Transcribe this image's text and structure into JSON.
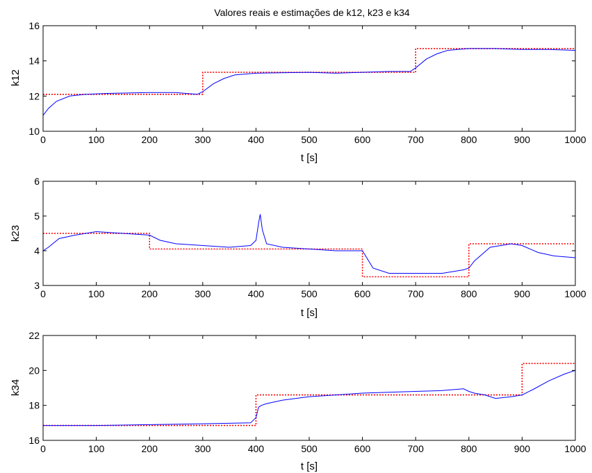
{
  "figure_title": "Valores reais e estimações de k12, k23 e k34",
  "chart_data": [
    {
      "type": "line",
      "xlabel": "t [s]",
      "ylabel": "k12",
      "xlim": [
        0,
        1000
      ],
      "ylim": [
        10,
        16
      ],
      "xticks": [
        0,
        100,
        200,
        300,
        400,
        500,
        600,
        700,
        800,
        900,
        1000
      ],
      "yticks": [
        10,
        12,
        14,
        16
      ],
      "grid": false,
      "series": [
        {
          "color": "#ff0000",
          "style": "dotted",
          "step": true,
          "x": [
            0,
            300,
            300,
            700,
            700,
            1000
          ],
          "y": [
            12.1,
            12.1,
            13.35,
            13.35,
            14.7,
            14.7
          ]
        },
        {
          "color": "#0000ff",
          "style": "solid",
          "x": [
            0,
            10,
            25,
            50,
            80,
            120,
            200,
            250,
            290,
            300,
            320,
            340,
            360,
            400,
            500,
            550,
            600,
            650,
            690,
            700,
            720,
            740,
            760,
            800,
            850,
            900,
            950,
            1000
          ],
          "y": [
            10.9,
            11.3,
            11.7,
            12.0,
            12.1,
            12.15,
            12.2,
            12.2,
            12.1,
            12.25,
            12.7,
            13.0,
            13.2,
            13.3,
            13.35,
            13.3,
            13.35,
            13.4,
            13.4,
            13.6,
            14.1,
            14.4,
            14.6,
            14.7,
            14.7,
            14.65,
            14.65,
            14.6
          ]
        }
      ]
    },
    {
      "type": "line",
      "xlabel": "t [s]",
      "ylabel": "k23",
      "xlim": [
        0,
        1000
      ],
      "ylim": [
        3,
        6
      ],
      "xticks": [
        0,
        100,
        200,
        300,
        400,
        500,
        600,
        700,
        800,
        900,
        1000
      ],
      "yticks": [
        3,
        4,
        5,
        6
      ],
      "grid": false,
      "series": [
        {
          "color": "#ff0000",
          "style": "dotted",
          "step": true,
          "x": [
            0,
            200,
            200,
            600,
            600,
            800,
            800,
            1000
          ],
          "y": [
            4.5,
            4.5,
            4.05,
            4.05,
            3.25,
            3.25,
            4.2,
            4.2
          ]
        },
        {
          "color": "#0000ff",
          "style": "solid",
          "x": [
            0,
            10,
            30,
            60,
            100,
            150,
            200,
            220,
            250,
            300,
            350,
            390,
            400,
            405,
            408,
            412,
            420,
            450,
            500,
            550,
            600,
            620,
            650,
            700,
            750,
            790,
            800,
            810,
            840,
            880,
            900,
            930,
            960,
            1000
          ],
          "y": [
            4.0,
            4.1,
            4.35,
            4.45,
            4.55,
            4.5,
            4.45,
            4.3,
            4.2,
            4.15,
            4.1,
            4.15,
            4.3,
            4.8,
            5.05,
            4.6,
            4.2,
            4.1,
            4.05,
            4.0,
            4.0,
            3.5,
            3.35,
            3.35,
            3.35,
            3.45,
            3.5,
            3.7,
            4.1,
            4.2,
            4.15,
            3.95,
            3.85,
            3.8
          ]
        }
      ]
    },
    {
      "type": "line",
      "xlabel": "t [s]",
      "ylabel": "k34",
      "xlim": [
        0,
        1000
      ],
      "ylim": [
        16,
        22
      ],
      "xticks": [
        0,
        100,
        200,
        300,
        400,
        500,
        600,
        700,
        800,
        900,
        1000
      ],
      "yticks": [
        16,
        18,
        20,
        22
      ],
      "grid": false,
      "series": [
        {
          "color": "#ff0000",
          "style": "dotted",
          "step": true,
          "x": [
            0,
            400,
            400,
            900,
            900,
            1000
          ],
          "y": [
            16.85,
            16.85,
            18.6,
            18.6,
            20.4,
            20.4
          ]
        },
        {
          "color": "#0000ff",
          "style": "solid",
          "x": [
            0,
            100,
            200,
            300,
            390,
            400,
            405,
            410,
            420,
            450,
            500,
            550,
            600,
            650,
            700,
            750,
            790,
            800,
            810,
            830,
            850,
            880,
            900,
            920,
            950,
            980,
            1000
          ],
          "y": [
            16.85,
            16.85,
            16.9,
            16.95,
            17.0,
            17.3,
            17.9,
            18.0,
            18.1,
            18.3,
            18.5,
            18.6,
            18.7,
            18.75,
            18.8,
            18.85,
            18.95,
            18.8,
            18.7,
            18.6,
            18.4,
            18.5,
            18.6,
            18.9,
            19.4,
            19.8,
            20.0
          ]
        }
      ]
    }
  ]
}
